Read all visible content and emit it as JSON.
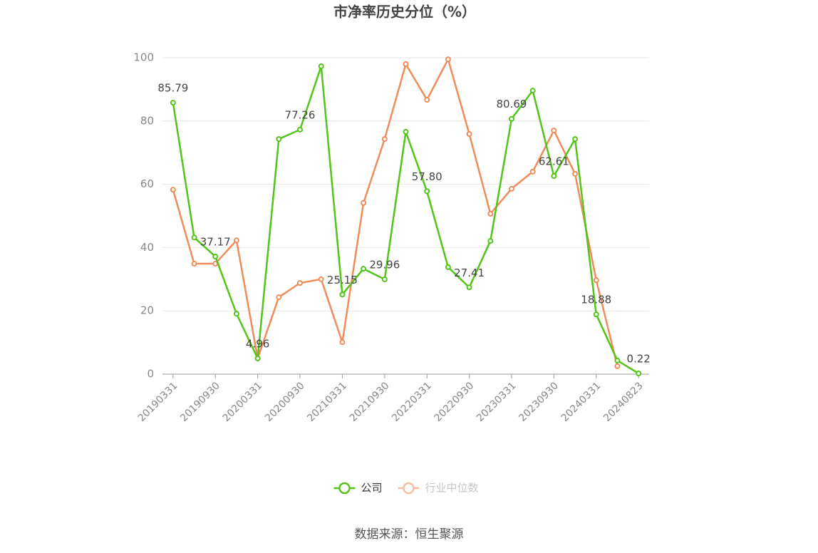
{
  "chart_data": {
    "type": "line",
    "title": "市净率历史分位（%）",
    "source": "数据来源：恒生聚源",
    "categories": [
      "20190331",
      null,
      "20190930",
      null,
      "20200331",
      null,
      "20200930",
      null,
      "20210331",
      null,
      "20210930",
      null,
      "20220331",
      null,
      "20220930",
      null,
      "20230331",
      null,
      "20230930",
      null,
      "20240331",
      null,
      "20240823"
    ],
    "series": [
      {
        "name": "公司",
        "color": "#52c41a",
        "values": [
          85.79,
          43.2,
          37.17,
          19.1,
          4.96,
          74.3,
          77.26,
          97.3,
          25.15,
          33.3,
          29.96,
          76.6,
          57.8,
          33.8,
          27.41,
          42.1,
          80.69,
          89.6,
          62.61,
          74.3,
          18.88,
          4.3,
          0.22
        ],
        "value_labels": [
          "85.79",
          null,
          "37.17",
          null,
          "4.96",
          null,
          "77.26",
          null,
          "25.15",
          null,
          "29.96",
          null,
          "57.80",
          null,
          "27.41",
          null,
          "80.69",
          null,
          "62.61",
          null,
          "18.88",
          null,
          "0.22"
        ]
      },
      {
        "name": "行业中位数",
        "color": "#f08c5a",
        "values": [
          58.3,
          34.9,
          34.9,
          42.3,
          5.0,
          24.3,
          28.8,
          30.0,
          10.1,
          54.1,
          74.3,
          98.0,
          86.7,
          99.5,
          75.9,
          50.7,
          58.6,
          64.0,
          77.0,
          63.3,
          29.7,
          2.5,
          null
        ]
      }
    ],
    "ylim": [
      0,
      100
    ],
    "yticks": [
      0,
      20,
      40,
      60,
      80,
      100
    ],
    "grid": true,
    "legend": "bottom"
  }
}
